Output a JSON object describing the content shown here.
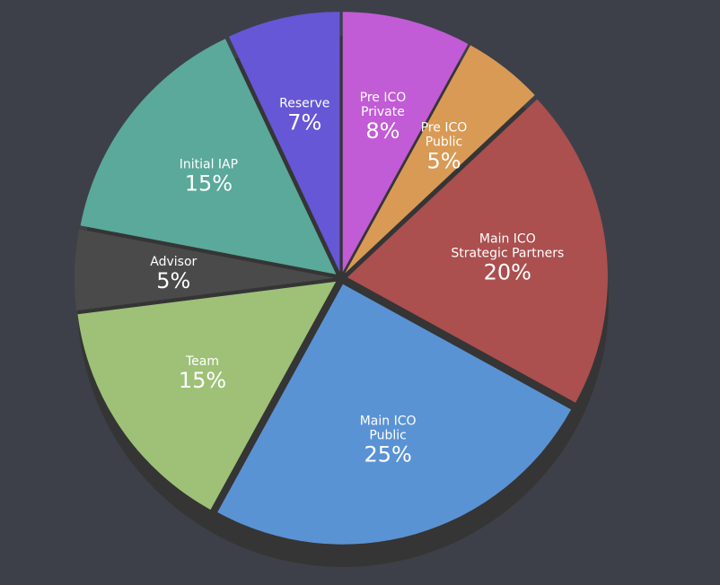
{
  "chart_data": {
    "type": "pie",
    "categories": [
      [
        "Pre ICO",
        "Private"
      ],
      [
        "Pre ICO",
        "Public"
      ],
      [
        "Main ICO",
        "Strategic Partners"
      ],
      [
        "Main ICO",
        "Public"
      ],
      [
        "Team"
      ],
      [
        "Advisor"
      ],
      [
        "Initial IAP"
      ],
      [
        "Reserve"
      ]
    ],
    "values": [
      8,
      5,
      20,
      25,
      15,
      5,
      15,
      7
    ],
    "value_labels": [
      "8%",
      "5%",
      "20%",
      "25%",
      "15%",
      "5%",
      "15%",
      "7%"
    ],
    "colors": [
      "#c25bd6",
      "#d99a55",
      "#ab4f4f",
      "#5a93d4",
      "#9ec177",
      "#4a4a4a",
      "#5aa99a",
      "#6557d6"
    ]
  }
}
